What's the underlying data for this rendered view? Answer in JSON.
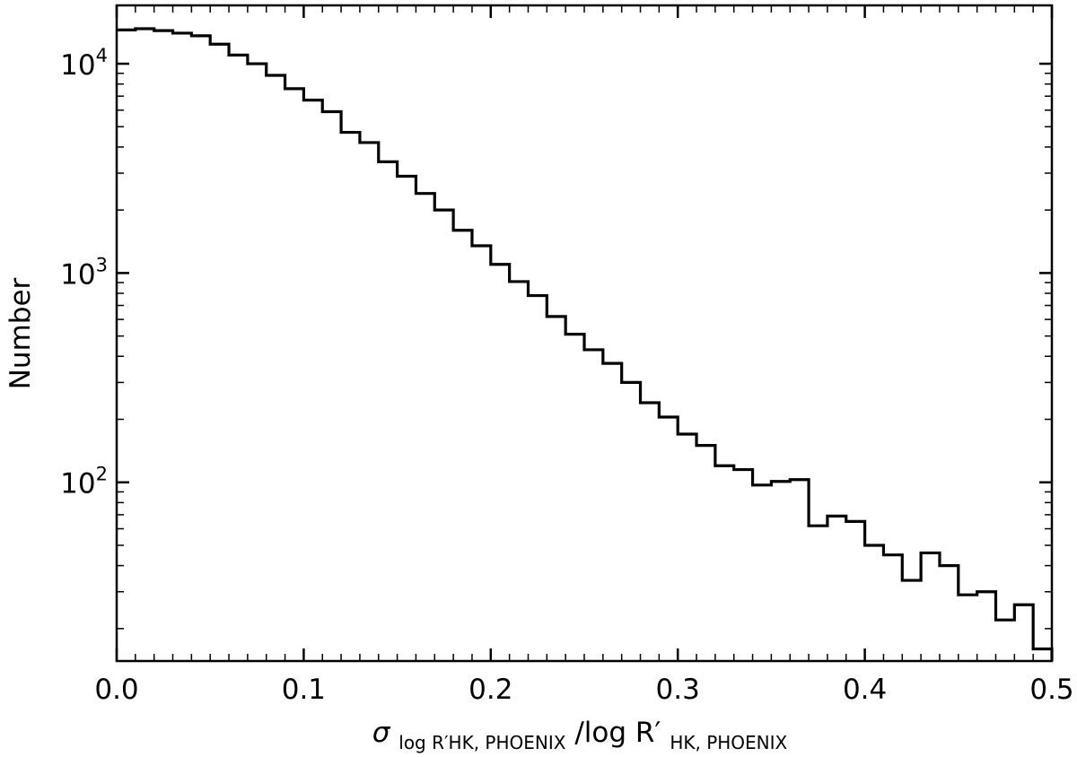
{
  "chart_data": {
    "type": "bar",
    "style": "step-histogram",
    "xlabel": {
      "sigma": "σ",
      "sub": "log R′HK, PHOENIX",
      "rest": "/log R′",
      "rest_sub": "HK, PHOENIX"
    },
    "ylabel": "Number",
    "xlim": [
      0.0,
      0.5
    ],
    "ylim": [
      14,
      19000
    ],
    "yscale": "log",
    "xticks": [
      "0.0",
      "0.1",
      "0.2",
      "0.3",
      "0.4",
      "0.5"
    ],
    "yticks": [
      {
        "value": 100,
        "base": "10",
        "exp": "2"
      },
      {
        "value": 1000,
        "base": "10",
        "exp": "3"
      },
      {
        "value": 10000,
        "base": "10",
        "exp": "4"
      }
    ],
    "grid": false,
    "bin_width": 0.01,
    "bin_edges_start": 0.0,
    "counts": [
      14500,
      14700,
      14400,
      14000,
      13600,
      12400,
      11000,
      10000,
      8800,
      7600,
      6700,
      5900,
      4700,
      4200,
      3400,
      2900,
      2400,
      2000,
      1600,
      1350,
      1100,
      910,
      780,
      620,
      510,
      430,
      370,
      300,
      240,
      205,
      170,
      150,
      120,
      115,
      97,
      101,
      103,
      62,
      69,
      65,
      50,
      45,
      34,
      46,
      40,
      29,
      30,
      22,
      26,
      16
    ]
  }
}
